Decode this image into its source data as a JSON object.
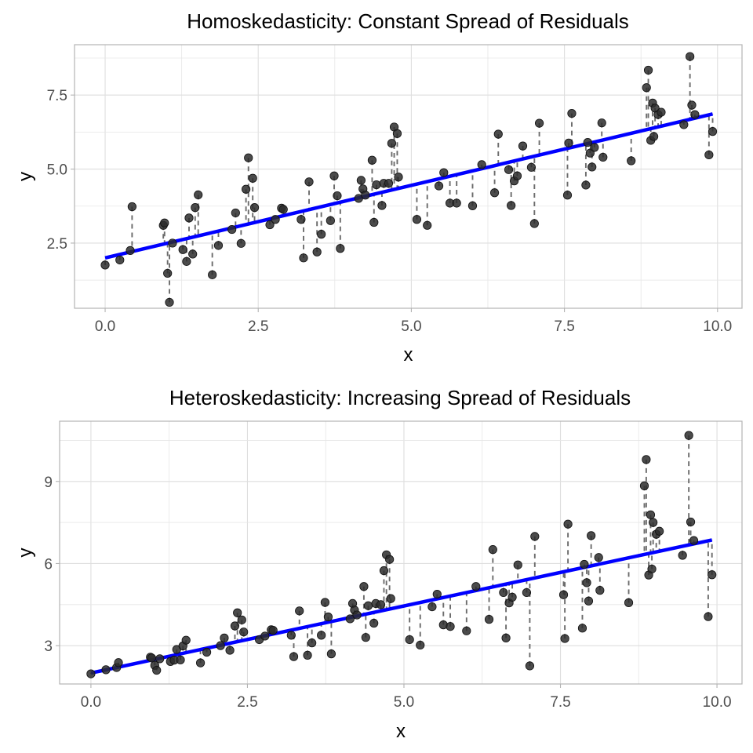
{
  "chart_data": [
    {
      "type": "scatter",
      "title": "Homoskedasticity: Constant Spread of Residuals",
      "xlabel": "x",
      "ylabel": "y",
      "xlim": [
        -0.5,
        10.4
      ],
      "ylim": [
        0.3,
        9.2
      ],
      "xticks": [
        0.0,
        2.5,
        5.0,
        7.5,
        10.0
      ],
      "xtick_labels": [
        "0.0",
        "2.5",
        "5.0",
        "7.5",
        "10.0"
      ],
      "yticks": [
        2.5,
        5.0,
        7.5
      ],
      "ytick_labels": [
        "2.5",
        "5.0",
        "7.5"
      ],
      "grid": true,
      "fit_line": {
        "intercept": 2.0,
        "slope": 0.49,
        "color": "#0000ff"
      },
      "residual_lines": "dashed",
      "x": [
        0.0,
        0.24,
        0.41,
        0.44,
        0.95,
        0.97,
        1.02,
        1.05,
        1.1,
        1.27,
        1.33,
        1.37,
        1.43,
        1.47,
        1.52,
        1.75,
        1.85,
        2.07,
        2.13,
        2.22,
        2.3,
        2.34,
        2.41,
        2.44,
        2.69,
        2.78,
        2.88,
        2.91,
        3.2,
        3.24,
        3.33,
        3.46,
        3.53,
        3.68,
        3.74,
        3.79,
        3.84,
        4.14,
        4.18,
        4.21,
        4.25,
        4.36,
        4.39,
        4.43,
        4.52,
        4.55,
        4.63,
        4.68,
        4.72,
        4.77,
        4.79,
        5.09,
        5.26,
        5.45,
        5.53,
        5.63,
        5.74,
        6.0,
        6.15,
        6.36,
        6.42,
        6.59,
        6.63,
        6.68,
        6.73,
        6.82,
        6.96,
        7.01,
        7.09,
        7.55,
        7.57,
        7.62,
        7.85,
        7.88,
        7.92,
        7.95,
        7.99,
        8.11,
        8.13,
        8.59,
        8.84,
        8.87,
        8.91,
        8.94,
        8.96,
        8.98,
        9.03,
        9.08,
        9.45,
        9.55,
        9.58,
        9.63,
        9.86,
        9.92
      ],
      "y": [
        1.76,
        1.93,
        2.25,
        3.73,
        3.1,
        3.18,
        1.48,
        0.5,
        2.5,
        2.28,
        1.88,
        3.35,
        2.13,
        3.7,
        4.13,
        1.43,
        2.42,
        2.96,
        3.52,
        2.49,
        4.32,
        5.38,
        4.69,
        3.7,
        3.12,
        3.3,
        3.68,
        3.64,
        3.3,
        2.0,
        4.57,
        2.2,
        2.8,
        3.26,
        4.77,
        4.1,
        2.32,
        4.01,
        4.62,
        4.33,
        4.12,
        5.3,
        3.2,
        4.47,
        3.77,
        4.52,
        4.52,
        5.87,
        6.42,
        6.2,
        4.73,
        3.3,
        3.1,
        4.43,
        4.88,
        3.85,
        3.85,
        3.76,
        5.15,
        4.2,
        6.18,
        4.98,
        3.77,
        4.6,
        4.77,
        5.78,
        5.06,
        3.16,
        6.55,
        4.12,
        5.88,
        6.88,
        4.46,
        5.9,
        5.54,
        5.07,
        5.73,
        6.56,
        5.4,
        5.28,
        7.75,
        8.34,
        5.97,
        7.23,
        6.1,
        7.06,
        6.84,
        6.92,
        6.5,
        8.8,
        7.16,
        6.84,
        5.48,
        6.27
      ]
    },
    {
      "type": "scatter",
      "title": "Heteroskedasticity: Increasing Spread of Residuals",
      "xlabel": "x",
      "ylabel": "y",
      "xlim": [
        -0.5,
        10.4
      ],
      "ylim": [
        1.6,
        11.2
      ],
      "xticks": [
        0.0,
        2.5,
        5.0,
        7.5,
        10.0
      ],
      "xtick_labels": [
        "0.0",
        "2.5",
        "5.0",
        "7.5",
        "10.0"
      ],
      "yticks": [
        3,
        6,
        9
      ],
      "ytick_labels": [
        "3",
        "6",
        "9"
      ],
      "grid": true,
      "fit_line": {
        "intercept": 2.0,
        "slope": 0.49,
        "color": "#0000ff"
      },
      "residual_lines": "dashed",
      "x": [
        0.0,
        0.24,
        0.41,
        0.44,
        0.95,
        0.97,
        1.02,
        1.05,
        1.1,
        1.27,
        1.33,
        1.37,
        1.43,
        1.47,
        1.52,
        1.75,
        1.85,
        2.07,
        2.13,
        2.22,
        2.3,
        2.34,
        2.41,
        2.44,
        2.69,
        2.78,
        2.88,
        2.91,
        3.2,
        3.24,
        3.33,
        3.46,
        3.53,
        3.68,
        3.74,
        3.79,
        3.84,
        4.14,
        4.18,
        4.21,
        4.25,
        4.36,
        4.39,
        4.43,
        4.52,
        4.55,
        4.63,
        4.68,
        4.72,
        4.77,
        4.79,
        5.09,
        5.26,
        5.45,
        5.53,
        5.63,
        5.74,
        6.0,
        6.15,
        6.36,
        6.42,
        6.59,
        6.63,
        6.68,
        6.73,
        6.82,
        6.96,
        7.01,
        7.09,
        7.55,
        7.57,
        7.62,
        7.85,
        7.88,
        7.92,
        7.95,
        7.99,
        8.11,
        8.13,
        8.59,
        8.84,
        8.87,
        8.91,
        8.94,
        8.96,
        8.98,
        9.03,
        9.08,
        9.45,
        9.55,
        9.58,
        9.63,
        9.86,
        9.92
      ],
      "y": [
        1.97,
        2.12,
        2.2,
        2.38,
        2.58,
        2.55,
        2.28,
        2.1,
        2.52,
        2.42,
        2.47,
        2.86,
        2.48,
        2.99,
        3.2,
        2.37,
        2.76,
        3.0,
        3.28,
        2.83,
        3.72,
        4.2,
        3.94,
        3.5,
        3.22,
        3.35,
        3.58,
        3.56,
        3.38,
        2.6,
        4.27,
        2.65,
        3.1,
        3.38,
        4.58,
        4.05,
        2.7,
        3.98,
        4.54,
        4.3,
        4.12,
        5.16,
        3.3,
        4.46,
        3.82,
        4.54,
        4.5,
        5.74,
        6.32,
        6.15,
        4.72,
        3.22,
        3.02,
        4.42,
        4.88,
        3.76,
        3.7,
        3.54,
        5.16,
        3.96,
        6.51,
        4.94,
        3.28,
        4.56,
        4.77,
        5.95,
        4.94,
        2.26,
        6.99,
        4.86,
        3.26,
        7.44,
        3.64,
        5.97,
        5.3,
        4.63,
        7.02,
        6.22,
        5.02,
        4.57,
        8.84,
        9.8,
        5.58,
        7.78,
        5.8,
        7.5,
        7.07,
        7.18,
        6.3,
        10.68,
        7.52,
        6.84,
        4.06,
        5.59
      ]
    }
  ]
}
